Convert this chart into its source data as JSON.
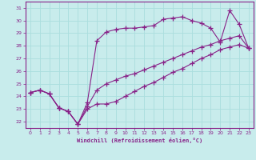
{
  "xlabel": "Windchill (Refroidissement éolien,°C)",
  "bg_color": "#c8ecec",
  "grid_color": "#aadddd",
  "line_color": "#882288",
  "xlim": [
    -0.5,
    23.5
  ],
  "ylim": [
    21.5,
    31.5
  ],
  "xticks": [
    0,
    1,
    2,
    3,
    4,
    5,
    6,
    7,
    8,
    9,
    10,
    11,
    12,
    13,
    14,
    15,
    16,
    17,
    18,
    19,
    20,
    21,
    22,
    23
  ],
  "yticks": [
    22,
    23,
    24,
    25,
    26,
    27,
    28,
    29,
    30,
    31
  ],
  "series": [
    {
      "x": [
        0,
        1,
        2,
        3,
        4,
        5,
        6,
        7,
        8,
        9,
        10,
        11,
        12,
        13,
        14,
        15,
        16,
        17,
        18,
        19,
        20,
        21,
        22,
        23
      ],
      "y": [
        24.3,
        24.5,
        24.2,
        23.1,
        22.8,
        21.8,
        23.5,
        28.4,
        29.1,
        29.3,
        29.4,
        29.4,
        29.5,
        29.6,
        30.1,
        30.2,
        30.3,
        30.0,
        29.8,
        29.4,
        28.3,
        30.8,
        29.7,
        27.8
      ]
    },
    {
      "x": [
        0,
        1,
        2,
        3,
        4,
        5,
        6,
        7,
        8,
        9,
        10,
        11,
        12,
        13,
        14,
        15,
        16,
        17,
        18,
        19,
        20,
        21,
        22,
        23
      ],
      "y": [
        24.3,
        24.5,
        24.2,
        23.1,
        22.8,
        21.8,
        23.0,
        23.4,
        23.4,
        23.6,
        24.0,
        24.4,
        24.8,
        25.1,
        25.5,
        25.9,
        26.2,
        26.6,
        27.0,
        27.3,
        27.7,
        27.9,
        28.1,
        27.8
      ]
    },
    {
      "x": [
        0,
        1,
        2,
        3,
        4,
        5,
        6,
        7,
        8,
        9,
        10,
        11,
        12,
        13,
        14,
        15,
        16,
        17,
        18,
        19,
        20,
        21,
        22,
        23
      ],
      "y": [
        24.3,
        24.5,
        24.2,
        23.1,
        22.8,
        21.8,
        23.2,
        24.5,
        25.0,
        25.3,
        25.6,
        25.8,
        26.1,
        26.4,
        26.7,
        27.0,
        27.3,
        27.6,
        27.9,
        28.1,
        28.4,
        28.6,
        28.8,
        27.8
      ]
    }
  ]
}
